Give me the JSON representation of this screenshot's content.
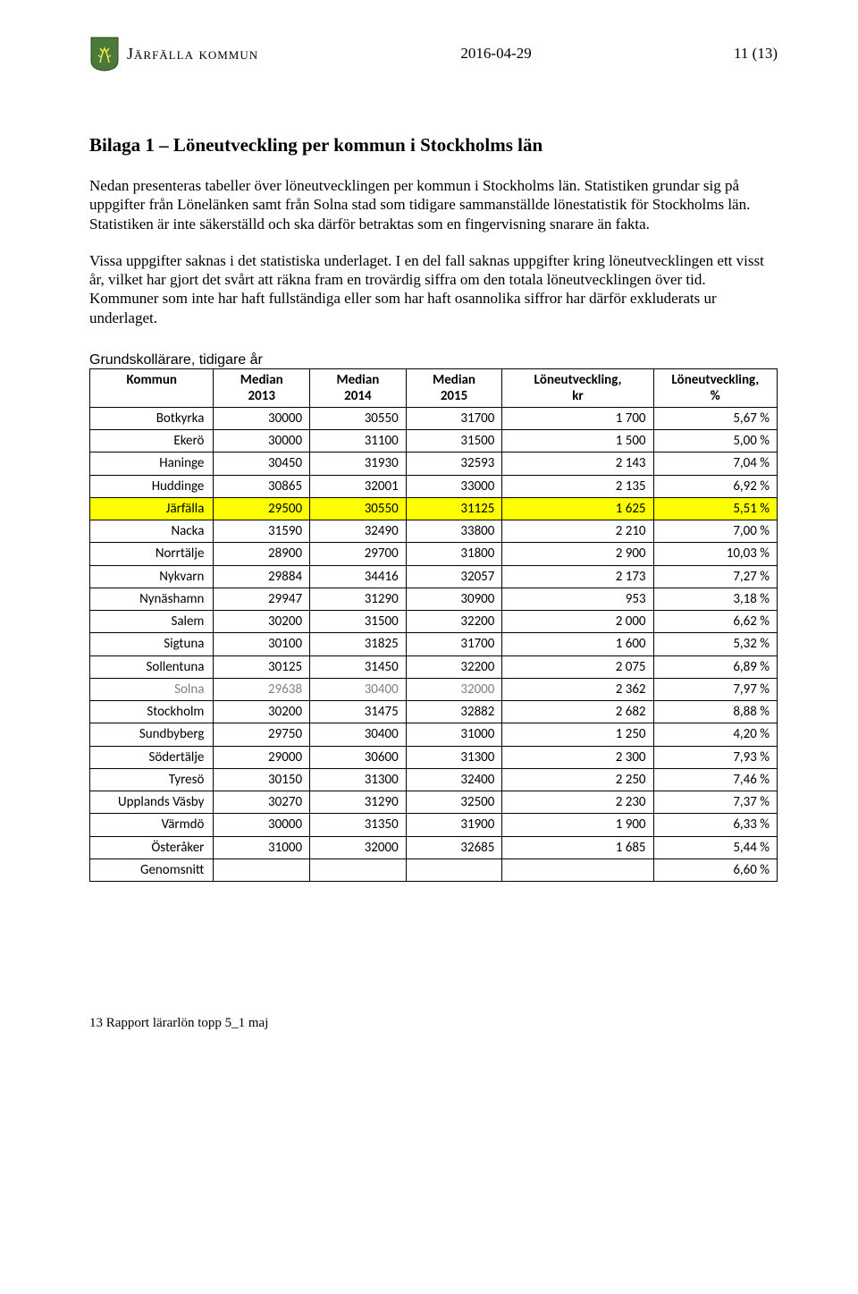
{
  "header": {
    "org_name": "Järfälla kommun",
    "date": "2016-04-29",
    "page_num": "11 (13)"
  },
  "title": "Bilaga 1 – Löneutveckling per kommun i Stockholms län",
  "paragraphs": {
    "p1": "Nedan presenteras tabeller över löneutvecklingen per kommun i Stockholms län. Statistiken grundar sig på uppgifter från Lönelänken samt från Solna stad som tidigare sammanställde lönestatistik för Stockholms län. Statistiken är inte säkerställd och ska därför betraktas som en fingervisning snarare än fakta.",
    "p2": "Vissa uppgifter saknas i det statistiska underlaget. I en del fall saknas uppgifter kring löneutvecklingen ett visst år, vilket har gjort det svårt att räkna fram en trovärdig siffra om den totala löneutvecklingen över tid. Kommuner som inte har haft fullständiga eller som har haft osannolika siffror har därför exkluderats ur underlaget."
  },
  "table": {
    "caption": "Grundskollärare, tidigare år",
    "columns": [
      {
        "l1": "Kommun",
        "l2": ""
      },
      {
        "l1": "Median",
        "l2": "2013"
      },
      {
        "l1": "Median",
        "l2": "2014"
      },
      {
        "l1": "Median",
        "l2": "2015"
      },
      {
        "l1": "Löneutveckling,",
        "l2": "kr"
      },
      {
        "l1": "Löneutveckling,",
        "l2": "%"
      }
    ],
    "rows": [
      {
        "name": "Botkyrka",
        "m13": "30000",
        "m14": "30550",
        "m15": "31700",
        "kr": "1 700",
        "pct": "5,67 %",
        "highlight": false,
        "gray": false
      },
      {
        "name": "Ekerö",
        "m13": "30000",
        "m14": "31100",
        "m15": "31500",
        "kr": "1 500",
        "pct": "5,00 %",
        "highlight": false,
        "gray": false
      },
      {
        "name": "Haninge",
        "m13": "30450",
        "m14": "31930",
        "m15": "32593",
        "kr": "2 143",
        "pct": "7,04 %",
        "highlight": false,
        "gray": false
      },
      {
        "name": "Huddinge",
        "m13": "30865",
        "m14": "32001",
        "m15": "33000",
        "kr": "2 135",
        "pct": "6,92 %",
        "highlight": false,
        "gray": false
      },
      {
        "name": "Järfälla",
        "m13": "29500",
        "m14": "30550",
        "m15": "31125",
        "kr": "1 625",
        "pct": "5,51 %",
        "highlight": true,
        "gray": false
      },
      {
        "name": "Nacka",
        "m13": "31590",
        "m14": "32490",
        "m15": "33800",
        "kr": "2 210",
        "pct": "7,00 %",
        "highlight": false,
        "gray": false
      },
      {
        "name": "Norrtälje",
        "m13": "28900",
        "m14": "29700",
        "m15": "31800",
        "kr": "2 900",
        "pct": "10,03 %",
        "highlight": false,
        "gray": false
      },
      {
        "name": "Nykvarn",
        "m13": "29884",
        "m14": "34416",
        "m15": "32057",
        "kr": "2 173",
        "pct": "7,27 %",
        "highlight": false,
        "gray": false
      },
      {
        "name": "Nynäshamn",
        "m13": "29947",
        "m14": "31290",
        "m15": "30900",
        "kr": "953",
        "pct": "3,18 %",
        "highlight": false,
        "gray": false
      },
      {
        "name": "Salem",
        "m13": "30200",
        "m14": "31500",
        "m15": "32200",
        "kr": "2 000",
        "pct": "6,62 %",
        "highlight": false,
        "gray": false
      },
      {
        "name": "Sigtuna",
        "m13": "30100",
        "m14": "31825",
        "m15": "31700",
        "kr": "1 600",
        "pct": "5,32 %",
        "highlight": false,
        "gray": false
      },
      {
        "name": "Sollentuna",
        "m13": "30125",
        "m14": "31450",
        "m15": "32200",
        "kr": "2 075",
        "pct": "6,89 %",
        "highlight": false,
        "gray": false
      },
      {
        "name": "Solna",
        "m13": "29638",
        "m14": "30400",
        "m15": "32000",
        "kr": "2 362",
        "pct": "7,97 %",
        "highlight": false,
        "gray": true
      },
      {
        "name": "Stockholm",
        "m13": "30200",
        "m14": "31475",
        "m15": "32882",
        "kr": "2 682",
        "pct": "8,88 %",
        "highlight": false,
        "gray": false
      },
      {
        "name": "Sundbyberg",
        "m13": "29750",
        "m14": "30400",
        "m15": "31000",
        "kr": "1 250",
        "pct": "4,20 %",
        "highlight": false,
        "gray": false
      },
      {
        "name": "Södertälje",
        "m13": "29000",
        "m14": "30600",
        "m15": "31300",
        "kr": "2 300",
        "pct": "7,93 %",
        "highlight": false,
        "gray": false
      },
      {
        "name": "Tyresö",
        "m13": "30150",
        "m14": "31300",
        "m15": "32400",
        "kr": "2 250",
        "pct": "7,46 %",
        "highlight": false,
        "gray": false
      },
      {
        "name": "Upplands Väsby",
        "m13": "30270",
        "m14": "31290",
        "m15": "32500",
        "kr": "2 230",
        "pct": "7,37 %",
        "highlight": false,
        "gray": false
      },
      {
        "name": "Värmdö",
        "m13": "30000",
        "m14": "31350",
        "m15": "31900",
        "kr": "1 900",
        "pct": "6,33 %",
        "highlight": false,
        "gray": false
      },
      {
        "name": "Österåker",
        "m13": "31000",
        "m14": "32000",
        "m15": "32685",
        "kr": "1 685",
        "pct": "5,44 %",
        "highlight": false,
        "gray": false
      },
      {
        "name": "Genomsnitt",
        "m13": "",
        "m14": "",
        "m15": "",
        "kr": "",
        "pct": "6,60 %",
        "highlight": false,
        "gray": false
      }
    ],
    "colors": {
      "highlight_bg": "#ffff00",
      "gray_text": "#808080",
      "border": "#000000",
      "background": "#ffffff"
    }
  },
  "footer": "13 Rapport lärarlön topp 5_1 maj"
}
